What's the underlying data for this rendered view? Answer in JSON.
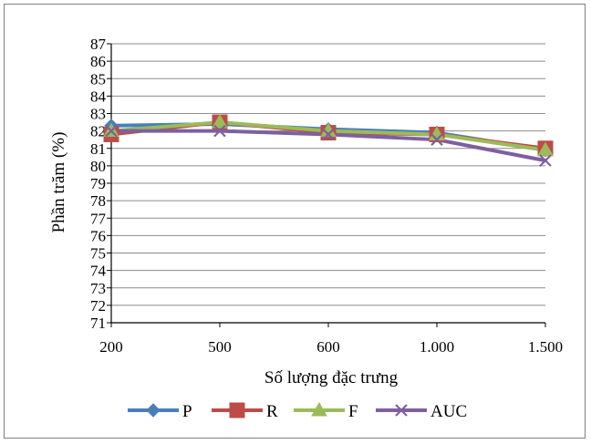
{
  "chart_data": {
    "type": "line",
    "categories": [
      "200",
      "500",
      "600",
      "1.000",
      "1.500"
    ],
    "series": [
      {
        "name": "P",
        "color": "#4a7ebb",
        "marker": "diamond",
        "values": [
          82.3,
          82.4,
          82.1,
          81.9,
          80.9
        ]
      },
      {
        "name": "R",
        "color": "#be4b48",
        "marker": "square",
        "values": [
          81.8,
          82.5,
          81.9,
          81.8,
          81.0
        ]
      },
      {
        "name": "F",
        "color": "#9bbb59",
        "marker": "triangle",
        "values": [
          82.0,
          82.5,
          82.0,
          81.8,
          80.9
        ]
      },
      {
        "name": "AUC",
        "color": "#7d60a0",
        "marker": "x",
        "values": [
          82.0,
          82.0,
          81.8,
          81.5,
          80.3
        ]
      }
    ],
    "xlabel": "Số lượng đặc trưng",
    "ylabel": "Phần trăm (%)",
    "ylim": [
      71,
      87
    ],
    "yticks": [
      "87",
      "86",
      "85",
      "84",
      "83",
      "82",
      "81",
      "80",
      "79",
      "78",
      "77",
      "76",
      "75",
      "74",
      "73",
      "72",
      "71"
    ],
    "grid": true,
    "legend": "bottom"
  }
}
